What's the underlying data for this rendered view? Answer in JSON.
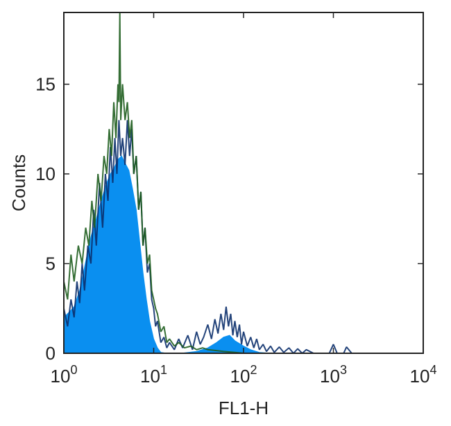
{
  "chart_data": {
    "type": "area",
    "xlabel": "FL1-H",
    "ylabel": "Counts",
    "xscale": "log",
    "xlim": [
      1,
      10000
    ],
    "ylim": [
      0,
      19
    ],
    "grid": false,
    "x_ticks": [
      {
        "value": 1,
        "base": "10",
        "exp": "0"
      },
      {
        "value": 10,
        "base": "10",
        "exp": "1"
      },
      {
        "value": 100,
        "base": "10",
        "exp": "2"
      },
      {
        "value": 1000,
        "base": "10",
        "exp": "3"
      },
      {
        "value": 10000,
        "base": "10",
        "exp": "4"
      }
    ],
    "y_ticks": [
      {
        "value": 0,
        "label": "0"
      },
      {
        "value": 5,
        "label": "5"
      },
      {
        "value": 10,
        "label": "10"
      },
      {
        "value": 15,
        "label": "15"
      }
    ],
    "series": [
      {
        "style": "filled",
        "color": "#0a8ff0",
        "x": [
          1,
          1.15,
          1.3,
          1.5,
          1.7,
          2,
          2.3,
          2.6,
          3,
          3.3,
          3.6,
          4,
          4.4,
          4.8,
          5.3,
          5.8,
          6.4,
          7,
          7.6,
          8.3,
          9,
          10,
          11,
          12,
          14,
          20,
          30,
          40,
          50,
          60,
          70,
          80,
          100,
          120,
          150,
          200
        ],
        "y": [
          2,
          2.3,
          2.6,
          3.5,
          4.8,
          6.5,
          7.5,
          8.5,
          9.5,
          10,
          10.3,
          10.8,
          11,
          10.6,
          10.2,
          9.2,
          8,
          6.2,
          4.5,
          3,
          1.8,
          0.8,
          0.3,
          0.05,
          0,
          0,
          0.1,
          0.3,
          0.6,
          0.9,
          1,
          0.7,
          0.4,
          0.2,
          0.05,
          0
        ]
      },
      {
        "style": "line",
        "color": "#0b2f6b",
        "x": [
          1,
          1.1,
          1.2,
          1.3,
          1.4,
          1.5,
          1.6,
          1.7,
          1.85,
          2,
          2.15,
          2.3,
          2.5,
          2.7,
          2.9,
          3.1,
          3.3,
          3.5,
          3.7,
          3.9,
          4.1,
          4.3,
          4.5,
          4.8,
          5.1,
          5.4,
          5.7,
          6,
          6.4,
          6.8,
          7.2,
          7.6,
          8,
          8.5,
          9,
          9.5,
          10,
          10.5,
          11,
          12,
          13,
          14,
          15,
          17,
          19,
          21,
          24,
          27,
          30,
          33,
          36,
          40,
          44,
          48,
          52,
          56,
          60,
          64,
          68,
          72,
          76,
          80,
          85,
          90,
          95,
          100,
          110,
          120,
          130,
          140,
          150,
          165,
          180,
          200,
          220,
          250,
          280,
          320,
          360,
          400,
          450,
          500,
          600,
          700,
          800,
          900,
          1000,
          1100,
          1200,
          1300,
          1400,
          1600
        ],
        "y": [
          2.5,
          1.5,
          3,
          2,
          4,
          2.8,
          5,
          3.5,
          6,
          5,
          8,
          6,
          9.5,
          7,
          10,
          8.5,
          11.5,
          9.5,
          12,
          10,
          13,
          11,
          12,
          10.5,
          13,
          11,
          12.5,
          10,
          11,
          8,
          9,
          6,
          7,
          4.5,
          5,
          3,
          2.5,
          1.5,
          1.8,
          0.6,
          0.9,
          0.3,
          0.6,
          0.2,
          0.8,
          0.3,
          1,
          0.2,
          1.2,
          0.5,
          0.9,
          1.6,
          0.8,
          1.9,
          1.1,
          2.2,
          1.3,
          2.6,
          1.5,
          2.2,
          1,
          1.8,
          0.9,
          1.6,
          0.5,
          1.2,
          0.4,
          0.9,
          0.3,
          0.8,
          0.2,
          0.5,
          0.1,
          0.4,
          0.05,
          0.35,
          0.05,
          0.3,
          0,
          0.25,
          0,
          0.2,
          0,
          0,
          0,
          0,
          0.5,
          0,
          0,
          0,
          0.35,
          0
        ]
      },
      {
        "style": "line",
        "color": "#1f5e1f",
        "x": [
          1,
          1.1,
          1.2,
          1.3,
          1.45,
          1.6,
          1.75,
          1.9,
          2.05,
          2.2,
          2.4,
          2.6,
          2.8,
          3,
          3.2,
          3.4,
          3.6,
          3.8,
          4,
          4.1,
          4.2,
          4.3,
          4.5,
          4.8,
          5.1,
          5.4,
          5.7,
          6,
          6.4,
          6.8,
          7.2,
          7.6,
          8,
          8.5,
          9,
          9.5,
          10,
          10.5,
          11,
          12,
          13,
          14,
          15,
          17,
          19,
          22,
          26,
          30,
          35,
          40,
          50,
          60,
          80,
          100
        ],
        "y": [
          4,
          3,
          5.5,
          4,
          6,
          5,
          7,
          6,
          8.5,
          7,
          10,
          8.5,
          11,
          10,
          12.5,
          11,
          14,
          12,
          15,
          14,
          19,
          13,
          15,
          13,
          14,
          12,
          13,
          10,
          11,
          8,
          9,
          6,
          7,
          5,
          5.5,
          3.5,
          3,
          2.5,
          2.2,
          1.2,
          1.5,
          0.6,
          0.8,
          0.4,
          0.6,
          0.3,
          0.4,
          0.2,
          0.3,
          0.2,
          0.15,
          0.1,
          0.05,
          0
        ]
      }
    ]
  }
}
